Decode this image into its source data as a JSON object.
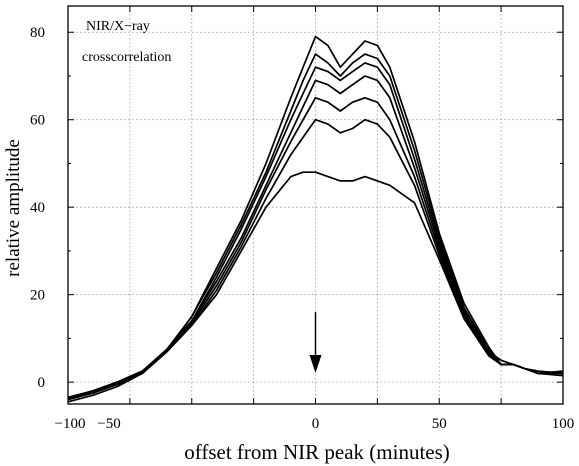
{
  "chart_data": {
    "type": "line",
    "xlabel": "offset from NIR peak (minutes)",
    "ylabel": "relative amplitude",
    "annotation": [
      "NIR/X−ray",
      "crosscorrelation"
    ],
    "xlim": [
      -100,
      100
    ],
    "ylim": [
      -5,
      86
    ],
    "x_ticks": [
      -100,
      -75,
      -50,
      -25,
      0,
      25,
      50,
      75,
      100
    ],
    "x_tick_labels": [
      "−100",
      "−50",
      "0",
      "50",
      "100"
    ],
    "x_tick_label_values": [
      -100,
      -50,
      0,
      50,
      100
    ],
    "y_ticks": [
      0,
      20,
      40,
      60,
      80
    ],
    "y_tick_labels": [
      "0",
      "20",
      "40",
      "60",
      "80"
    ],
    "grid": true,
    "arrow": {
      "x": 0,
      "y_from": 16,
      "y_to": 3
    },
    "x": [
      -100,
      -90,
      -80,
      -70,
      -60,
      -50,
      -40,
      -30,
      -20,
      -10,
      -5,
      0,
      5,
      10,
      15,
      20,
      25,
      30,
      40,
      50,
      60,
      70,
      75,
      80,
      85,
      90,
      100
    ],
    "series": [
      {
        "values": [
          -4.5,
          -3,
          -1,
          2,
          7,
          15,
          26,
          37,
          50,
          65,
          72,
          79,
          77,
          72,
          75,
          78,
          77,
          72,
          55,
          34,
          18,
          8,
          4,
          4,
          3,
          2,
          2
        ]
      },
      {
        "values": [
          -4,
          -2,
          -0.5,
          2.5,
          7.5,
          15,
          25,
          36,
          48,
          62,
          69,
          75,
          73,
          70,
          73,
          75,
          74,
          70,
          53,
          33,
          17,
          7.5,
          4,
          4,
          3,
          2,
          2.5
        ]
      },
      {
        "values": [
          -4,
          -2.5,
          -0.5,
          2,
          7,
          14,
          24,
          35,
          47,
          60,
          66,
          72,
          71,
          69,
          71,
          73,
          72,
          68,
          51,
          32,
          16.5,
          7,
          4,
          4,
          3,
          2.5,
          2
        ]
      },
      {
        "values": [
          -3.5,
          -2,
          0,
          2.5,
          7.5,
          14,
          23,
          33,
          45,
          57,
          63,
          69,
          68,
          66,
          68,
          70,
          69,
          65,
          49,
          31,
          16,
          7,
          5,
          4,
          3,
          2,
          2.5
        ]
      },
      {
        "values": [
          -4,
          -2.5,
          -0.5,
          2,
          7,
          13.5,
          22,
          32,
          44,
          55,
          60,
          65,
          64,
          62,
          64,
          65,
          64,
          60,
          47,
          30,
          15.5,
          6.5,
          4,
          4,
          3,
          2.5,
          2
        ]
      },
      {
        "values": [
          -4,
          -2,
          0,
          2.5,
          7,
          13,
          21,
          31,
          42,
          52,
          56,
          60,
          59,
          57,
          58,
          60,
          59,
          56,
          45,
          29,
          15,
          6.5,
          4,
          4,
          3,
          2,
          1.5
        ]
      },
      {
        "values": [
          -3.5,
          -2,
          0,
          2.5,
          7,
          13,
          20,
          30,
          40,
          47,
          48,
          48,
          47,
          46,
          46,
          47,
          46,
          45,
          41,
          28,
          14.5,
          6,
          4,
          4,
          3,
          2.5,
          2
        ]
      }
    ]
  }
}
